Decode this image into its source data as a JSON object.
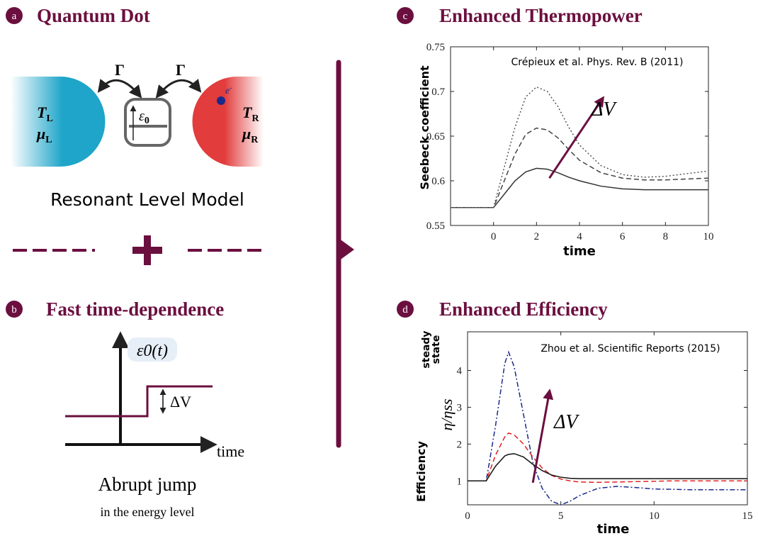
{
  "panel_a": {
    "letter": "a",
    "title": "Quantum Dot",
    "coupling": [
      "Γ",
      "Γ"
    ],
    "left_lead": [
      {
        "symbol": "T",
        "sub": "L"
      },
      {
        "symbol": "μ",
        "sub": "L"
      }
    ],
    "right_lead": [
      {
        "symbol": "T",
        "sub": "R"
      },
      {
        "symbol": "μ",
        "sub": "R"
      }
    ],
    "dot": {
      "symbol": "ε",
      "sub": "0"
    },
    "electron": {
      "symbol": "e",
      "sup": "-"
    },
    "caption": "Resonant Level Model"
  },
  "panel_b": {
    "letter": "b",
    "title": "Fast time-dependence",
    "axis_label": "ε0(t)",
    "jump": "ΔV",
    "time": "time",
    "caption": "Abrupt jump",
    "subcaption": "in the energy level"
  },
  "chart_data": [
    {
      "type": "line",
      "letter": "c",
      "title": "Enhanced Thermopower",
      "annotation": "Crépieux et al. Phys. Rev. B (2011)",
      "arrow_label": "ΔV",
      "ylabel": "Seebeck coefficient",
      "xlabel": "time",
      "xlim": [
        -2,
        10
      ],
      "xticks": [
        0,
        2,
        4,
        6,
        8,
        10
      ],
      "ylim": [
        0.55,
        0.75
      ],
      "yticks": [
        0.55,
        0.6,
        0.65,
        0.7,
        0.75
      ],
      "x": [
        -2,
        -1,
        0,
        0.5,
        1,
        1.5,
        2,
        2.5,
        3,
        3.5,
        4,
        5,
        6,
        7,
        8,
        9,
        10
      ],
      "series": [
        {
          "color": "#333333",
          "dash": "solid",
          "values": [
            0.57,
            0.57,
            0.57,
            0.585,
            0.6,
            0.61,
            0.614,
            0.613,
            0.609,
            0.604,
            0.6,
            0.594,
            0.591,
            0.59,
            0.59,
            0.59,
            0.59
          ]
        },
        {
          "color": "#444444",
          "dash": "dashed",
          "values": [
            0.57,
            0.57,
            0.57,
            0.6,
            0.63,
            0.652,
            0.659,
            0.657,
            0.648,
            0.635,
            0.623,
            0.609,
            0.603,
            0.601,
            0.601,
            0.602,
            0.603
          ]
        },
        {
          "color": "#555555",
          "dash": "dotted",
          "values": [
            0.57,
            0.57,
            0.57,
            0.615,
            0.66,
            0.694,
            0.705,
            0.7,
            0.683,
            0.66,
            0.64,
            0.617,
            0.607,
            0.604,
            0.605,
            0.608,
            0.611
          ]
        }
      ]
    },
    {
      "type": "line",
      "letter": "d",
      "title": "Enhanced Efficiency",
      "annotation": "Zhou et al. Scientific Reports (2015)",
      "arrow_label": "ΔV",
      "ylabel": "Efficiency",
      "ratio_label": "η/ηss",
      "steady_state": [
        "steady",
        "state"
      ],
      "xlabel": "time",
      "xlim": [
        0,
        15
      ],
      "xticks": [
        0,
        5,
        10,
        15
      ],
      "ylim": [
        0.35,
        5.05
      ],
      "yticks": [
        1,
        2,
        3,
        4
      ],
      "x": [
        0,
        1,
        1.5,
        2,
        2.2,
        2.5,
        3,
        3.5,
        4,
        4.5,
        5,
        5.5,
        6,
        7,
        8,
        9,
        10,
        11,
        12,
        13,
        14,
        15
      ],
      "series": [
        {
          "color": "#1a2a8a",
          "dash": "dashdot",
          "values": [
            1,
            1,
            2.5,
            4.2,
            4.5,
            4.1,
            2.8,
            1.5,
            0.8,
            0.45,
            0.35,
            0.45,
            0.6,
            0.8,
            0.85,
            0.82,
            0.78,
            0.77,
            0.76,
            0.76,
            0.76,
            0.76
          ]
        },
        {
          "color": "#e02020",
          "dash": "dashed",
          "values": [
            1,
            1,
            1.7,
            2.2,
            2.3,
            2.25,
            2.0,
            1.65,
            1.35,
            1.15,
            1.05,
            1.0,
            0.97,
            0.96,
            0.97,
            0.98,
            0.99,
            1.0,
            1.0,
            1.0,
            1.0,
            1.0
          ]
        },
        {
          "color": "#111111",
          "dash": "solid",
          "values": [
            1,
            1,
            1.4,
            1.68,
            1.72,
            1.74,
            1.65,
            1.45,
            1.28,
            1.16,
            1.1,
            1.07,
            1.06,
            1.06,
            1.06,
            1.06,
            1.06,
            1.06,
            1.06,
            1.06,
            1.06,
            1.06
          ]
        }
      ]
    }
  ]
}
